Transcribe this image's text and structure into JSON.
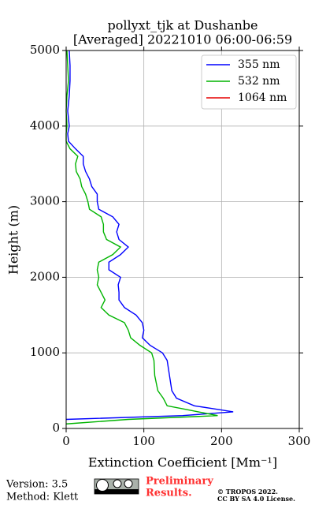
{
  "chart_data": {
    "type": "line",
    "orientation": "profile",
    "title": [
      "pollyxt_tjk at Dushanbe",
      "[Averaged] 20221010 06:00-06:59"
    ],
    "xlabel": "Extinction Coefficient [Mm⁻¹]",
    "ylabel": "Height (m)",
    "xlim": [
      0,
      300
    ],
    "ylim": [
      0,
      5000
    ],
    "xticks": [
      0,
      100,
      200,
      300
    ],
    "yticks": [
      0,
      1000,
      2000,
      3000,
      4000,
      5000
    ],
    "grid": true,
    "legend": "upper right",
    "y": [
      60,
      120,
      170,
      220,
      260,
      300,
      400,
      500,
      700,
      900,
      1000,
      1100,
      1200,
      1300,
      1400,
      1500,
      1600,
      1700,
      1800,
      1900,
      2000,
      2100,
      2200,
      2300,
      2400,
      2500,
      2600,
      2700,
      2800,
      2900,
      3000,
      3100,
      3200,
      3300,
      3400,
      3500,
      3600,
      3700,
      3800,
      3900,
      4000,
      4200,
      4400,
      4600,
      4800,
      5000
    ],
    "series": [
      {
        "name": "355 nm",
        "color": "#0000ff",
        "values": [
          null,
          0,
          150,
          215,
          190,
          165,
          142,
          136,
          133,
          130,
          124,
          108,
          98,
          100,
          98,
          90,
          75,
          68,
          68,
          67,
          70,
          55,
          55,
          70,
          80,
          68,
          65,
          68,
          60,
          42,
          40,
          40,
          33,
          30,
          25,
          22,
          22,
          12,
          3,
          2,
          4,
          2,
          4,
          5,
          5,
          4
        ]
      },
      {
        "name": "532 nm",
        "color": "#00b400",
        "values": [
          0,
          80,
          195,
          170,
          150,
          130,
          125,
          118,
          114,
          113,
          110,
          95,
          83,
          80,
          75,
          55,
          45,
          50,
          45,
          40,
          42,
          40,
          42,
          60,
          70,
          52,
          48,
          48,
          45,
          30,
          28,
          25,
          20,
          18,
          13,
          12,
          15,
          5,
          0,
          0,
          1,
          0,
          1,
          3,
          2,
          1
        ]
      },
      {
        "name": "1064 nm",
        "color": "#e60000",
        "values": [
          null,
          null,
          null,
          null,
          null,
          null,
          null,
          null,
          null,
          null,
          null,
          null,
          null,
          null,
          null,
          null,
          null,
          null,
          null,
          null,
          null,
          null,
          null,
          null,
          null,
          null,
          null,
          null,
          null,
          null,
          null,
          null,
          null,
          null,
          null,
          null,
          null,
          null,
          null,
          null,
          null,
          null,
          null,
          null,
          null,
          null
        ]
      }
    ]
  },
  "footer": {
    "version": "Version: 3.5",
    "method": "Method: Klett",
    "status": [
      "Preliminary",
      "Results."
    ],
    "copyright": [
      "© TROPOS 2022.",
      "CC BY SA 4.0 License."
    ]
  }
}
